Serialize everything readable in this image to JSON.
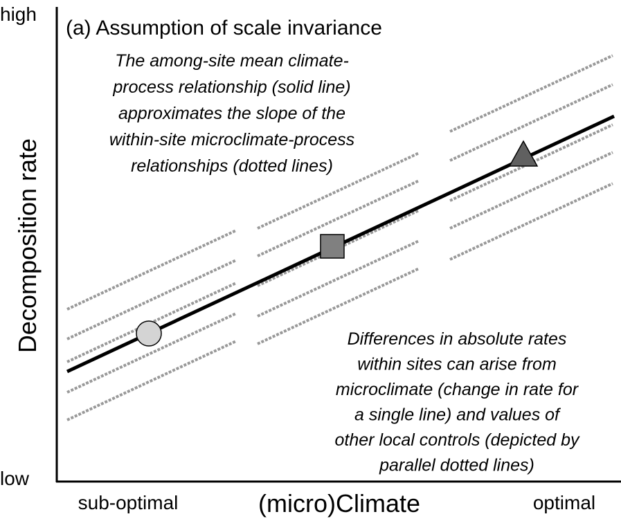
{
  "axes": {
    "y_label": "Decomposition rate",
    "y_high": "high",
    "y_low": "low",
    "x_label": "(micro)Climate",
    "x_left": "sub-optimal",
    "x_right": "optimal"
  },
  "title": "(a) Assumption of scale invariance",
  "annotations": [
    {
      "lines": [
        "The among-site mean climate-",
        "process relationship (solid line)",
        "approximates the slope of the",
        "within-site microclimate-process",
        "relationships (dotted lines)"
      ]
    },
    {
      "lines": [
        "Differences in absolute rates",
        "within sites can arise from",
        "microclimate (change in rate for",
        "a single line) and values of",
        "other local controls (depicted by",
        "parallel dotted lines)"
      ]
    }
  ]
}
